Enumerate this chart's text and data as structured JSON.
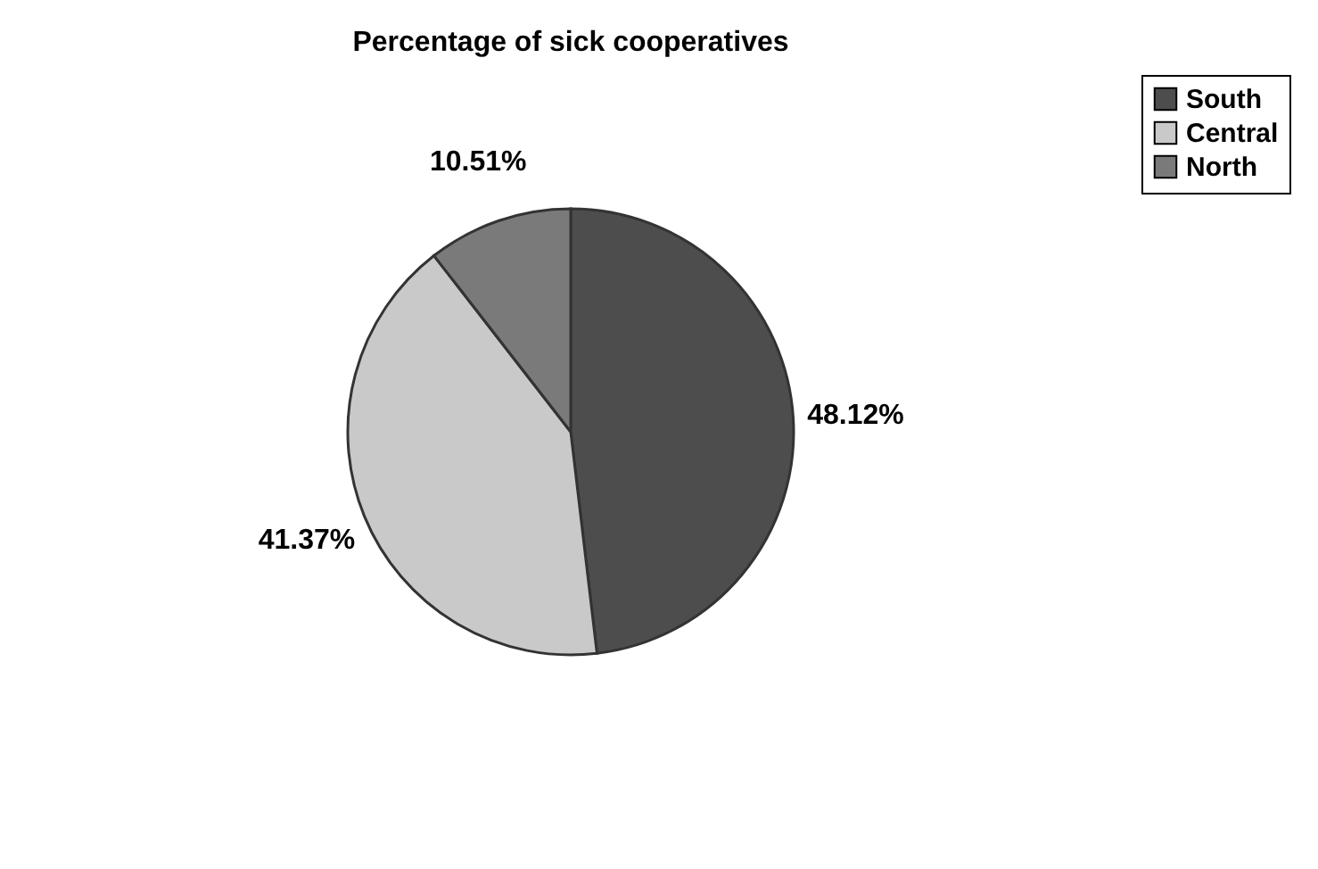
{
  "chart_data": {
    "type": "pie",
    "title": "Percentage of sick cooperatives",
    "categories": [
      "South",
      "Central",
      "North"
    ],
    "values": [
      48.12,
      41.37,
      10.51
    ],
    "colors": [
      "#4d4d4d",
      "#c9c9c9",
      "#7a7a7a"
    ],
    "value_labels": [
      "48.12%",
      "41.37%",
      "10.51%"
    ],
    "legend": "right"
  }
}
